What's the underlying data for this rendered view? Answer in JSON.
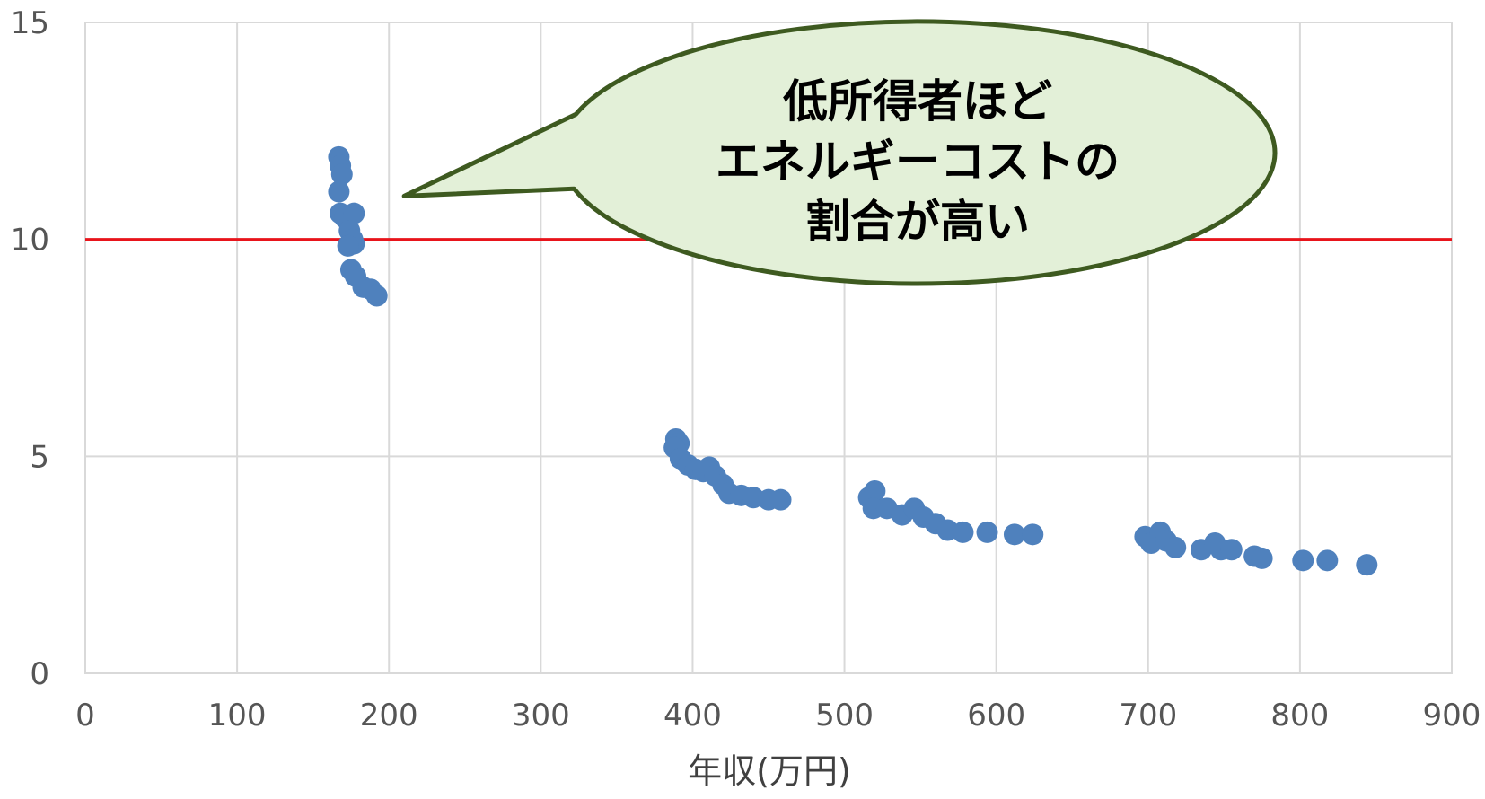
{
  "chart_data": {
    "type": "scatter",
    "title": "",
    "xlabel": "年収(万円)",
    "ylabel": "",
    "xlim": [
      0,
      900
    ],
    "ylim": [
      0,
      15
    ],
    "x_ticks": [
      0,
      100,
      200,
      300,
      400,
      500,
      600,
      700,
      800,
      900
    ],
    "y_ticks": [
      0,
      5,
      10,
      15
    ],
    "grid": true,
    "legend": "none",
    "reference_line": {
      "y": 10,
      "color": "#e8141b"
    },
    "series": [
      {
        "color": "#4f81bd",
        "points": [
          [
            167,
            11.9
          ],
          [
            168,
            11.7
          ],
          [
            169,
            11.5
          ],
          [
            167,
            11.1
          ],
          [
            168,
            10.6
          ],
          [
            171,
            10.5
          ],
          [
            177,
            10.6
          ],
          [
            174,
            10.2
          ],
          [
            176,
            10.0
          ],
          [
            177,
            9.9
          ],
          [
            173,
            9.85
          ],
          [
            175,
            9.3
          ],
          [
            178,
            9.15
          ],
          [
            183,
            8.9
          ],
          [
            188,
            8.85
          ],
          [
            192,
            8.7
          ],
          [
            389,
            5.4
          ],
          [
            391,
            5.3
          ],
          [
            388,
            5.2
          ],
          [
            392,
            4.95
          ],
          [
            397,
            4.8
          ],
          [
            402,
            4.7
          ],
          [
            407,
            4.65
          ],
          [
            411,
            4.75
          ],
          [
            415,
            4.55
          ],
          [
            420,
            4.35
          ],
          [
            424,
            4.15
          ],
          [
            432,
            4.1
          ],
          [
            440,
            4.05
          ],
          [
            450,
            4.0
          ],
          [
            458,
            4.0
          ],
          [
            516,
            4.05
          ],
          [
            520,
            4.2
          ],
          [
            519,
            3.8
          ],
          [
            528,
            3.8
          ],
          [
            538,
            3.65
          ],
          [
            546,
            3.8
          ],
          [
            552,
            3.6
          ],
          [
            560,
            3.45
          ],
          [
            568,
            3.3
          ],
          [
            578,
            3.25
          ],
          [
            594,
            3.25
          ],
          [
            612,
            3.2
          ],
          [
            624,
            3.2
          ],
          [
            698,
            3.15
          ],
          [
            702,
            3.0
          ],
          [
            708,
            3.25
          ],
          [
            712,
            3.05
          ],
          [
            718,
            2.9
          ],
          [
            735,
            2.85
          ],
          [
            744,
            3.0
          ],
          [
            748,
            2.85
          ],
          [
            755,
            2.85
          ],
          [
            770,
            2.7
          ],
          [
            775,
            2.65
          ],
          [
            802,
            2.6
          ],
          [
            818,
            2.6
          ],
          [
            844,
            2.5
          ]
        ]
      }
    ],
    "annotation": {
      "lines": [
        "低所得者ほど",
        "エネルギーコストの",
        "割合が高い"
      ],
      "fill": "#e3f0d8",
      "stroke": "#3e5a20",
      "pointer_to": [
        210,
        11.0
      ]
    }
  }
}
